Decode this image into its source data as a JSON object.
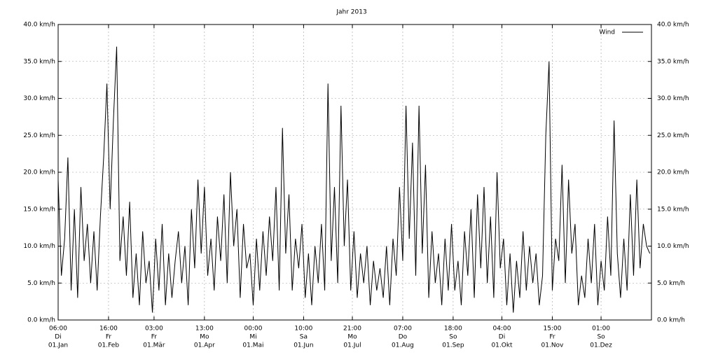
{
  "chart_data": {
    "type": "line",
    "title": "Jahr 2013",
    "xlim": [
      0,
      365
    ],
    "xticks": [
      0,
      31,
      59,
      90,
      120,
      151,
      181,
      212,
      243,
      273,
      304,
      334
    ],
    "xtick_labels": [
      [
        "06:00",
        "Di",
        "01.Jan"
      ],
      [
        "16:00",
        "Fr",
        "01.Feb"
      ],
      [
        "03:00",
        "Fr",
        "01.Mär"
      ],
      [
        "13:00",
        "Mo",
        "01.Apr"
      ],
      [
        "00:00",
        "Mi",
        "01.Mai"
      ],
      [
        "10:00",
        "Sa",
        "01.Jun"
      ],
      [
        "21:00",
        "Mo",
        "01.Jul"
      ],
      [
        "07:00",
        "Do",
        "01.Aug"
      ],
      [
        "18:00",
        "So",
        "01.Sep"
      ],
      [
        "04:00",
        "Di",
        "01.Okt"
      ],
      [
        "15:00",
        "Fr",
        "01.Nov"
      ],
      [
        "01:00",
        "So",
        "01.Dez"
      ]
    ],
    "ylim": [
      0,
      40
    ],
    "yticks": [
      {
        "value": 0,
        "label": "0.0 km/h"
      },
      {
        "value": 5,
        "label": "5.0 km/h"
      },
      {
        "value": 10,
        "label": "10.0 km/h"
      },
      {
        "value": 15,
        "label": "15.0 km/h"
      },
      {
        "value": 20,
        "label": "20.0 km/h"
      },
      {
        "value": 25,
        "label": "25.0 km/h"
      },
      {
        "value": 30,
        "label": "30.0 km/h"
      },
      {
        "value": 35,
        "label": "35.0 km/h"
      },
      {
        "value": 40,
        "label": "40.0 km/h"
      }
    ],
    "y2lim": [
      0,
      40
    ],
    "y2ticks": [
      {
        "value": 0,
        "label": "0.0 km/h"
      },
      {
        "value": 5,
        "label": "5.0 km/h"
      },
      {
        "value": 10,
        "label": "10.0 km/h"
      },
      {
        "value": 15,
        "label": "15.0 km/h"
      },
      {
        "value": 20,
        "label": "20.0 km/h"
      },
      {
        "value": 25,
        "label": "25.0 km/h"
      },
      {
        "value": 30,
        "label": "30.0 km/h"
      },
      {
        "value": 35,
        "label": "35.0 km/h"
      },
      {
        "value": 40,
        "label": "40.0 km/h"
      }
    ],
    "grid": true,
    "legend": "top-right",
    "x": [
      0,
      2,
      4,
      6,
      8,
      10,
      12,
      14,
      16,
      18,
      20,
      22,
      24,
      26,
      28,
      30,
      32,
      34,
      36,
      38,
      40,
      42,
      44,
      46,
      48,
      50,
      52,
      54,
      56,
      58,
      60,
      62,
      64,
      66,
      68,
      70,
      72,
      74,
      76,
      78,
      80,
      82,
      84,
      86,
      88,
      90,
      92,
      94,
      96,
      98,
      100,
      102,
      104,
      106,
      108,
      110,
      112,
      114,
      116,
      118,
      120,
      122,
      124,
      126,
      128,
      130,
      132,
      134,
      136,
      138,
      140,
      142,
      144,
      146,
      148,
      150,
      152,
      154,
      156,
      158,
      160,
      162,
      164,
      166,
      168,
      170,
      172,
      174,
      176,
      178,
      180,
      182,
      184,
      186,
      188,
      190,
      192,
      194,
      196,
      198,
      200,
      202,
      204,
      206,
      208,
      210,
      212,
      214,
      216,
      218,
      220,
      222,
      224,
      226,
      228,
      230,
      232,
      234,
      236,
      238,
      240,
      242,
      244,
      246,
      248,
      250,
      252,
      254,
      256,
      258,
      260,
      262,
      264,
      266,
      268,
      270,
      272,
      274,
      276,
      278,
      280,
      282,
      284,
      286,
      288,
      290,
      292,
      294,
      296,
      298,
      300,
      302,
      304,
      306,
      308,
      310,
      312,
      314,
      316,
      318,
      320,
      322,
      324,
      326,
      328,
      330,
      332,
      334,
      336,
      338,
      340,
      342,
      344,
      346,
      348,
      350,
      352,
      354,
      356,
      358,
      360,
      362,
      364
    ],
    "series": [
      {
        "name": "Wind",
        "color": "#000000",
        "values": [
          19,
          6,
          11,
          22,
          4,
          15,
          3,
          18,
          8,
          13,
          5,
          12,
          4,
          14,
          22,
          32,
          15,
          27,
          37,
          8,
          14,
          6,
          16,
          3,
          9,
          2,
          12,
          5,
          8,
          1,
          11,
          4,
          13,
          2,
          9,
          3,
          8,
          12,
          5,
          10,
          2,
          15,
          7,
          19,
          9,
          18,
          6,
          11,
          4,
          14,
          8,
          17,
          5,
          20,
          10,
          15,
          3,
          13,
          7,
          9,
          2,
          11,
          4,
          12,
          6,
          14,
          8,
          18,
          4,
          26,
          9,
          17,
          4,
          11,
          7,
          13,
          3,
          9,
          2,
          10,
          5,
          13,
          4,
          32,
          8,
          18,
          5,
          29,
          10,
          19,
          4,
          12,
          3,
          9,
          5,
          10,
          2,
          8,
          4,
          7,
          3,
          10,
          2,
          11,
          6,
          18,
          8,
          29,
          11,
          24,
          6,
          29,
          9,
          21,
          3,
          12,
          5,
          9,
          2,
          11,
          4,
          13,
          4,
          8,
          2,
          12,
          6,
          15,
          3,
          17,
          7,
          18,
          5,
          14,
          3,
          20,
          7,
          11,
          2,
          9,
          1,
          8,
          3,
          12,
          4,
          10,
          5,
          9,
          2,
          6,
          25,
          35,
          4,
          11,
          8,
          21,
          5,
          19,
          9,
          13,
          2,
          6,
          3,
          11,
          5,
          13,
          2,
          8,
          4,
          14,
          6,
          27,
          9,
          3,
          11,
          4,
          17,
          6,
          19,
          7,
          13,
          10,
          9
        ]
      }
    ]
  }
}
